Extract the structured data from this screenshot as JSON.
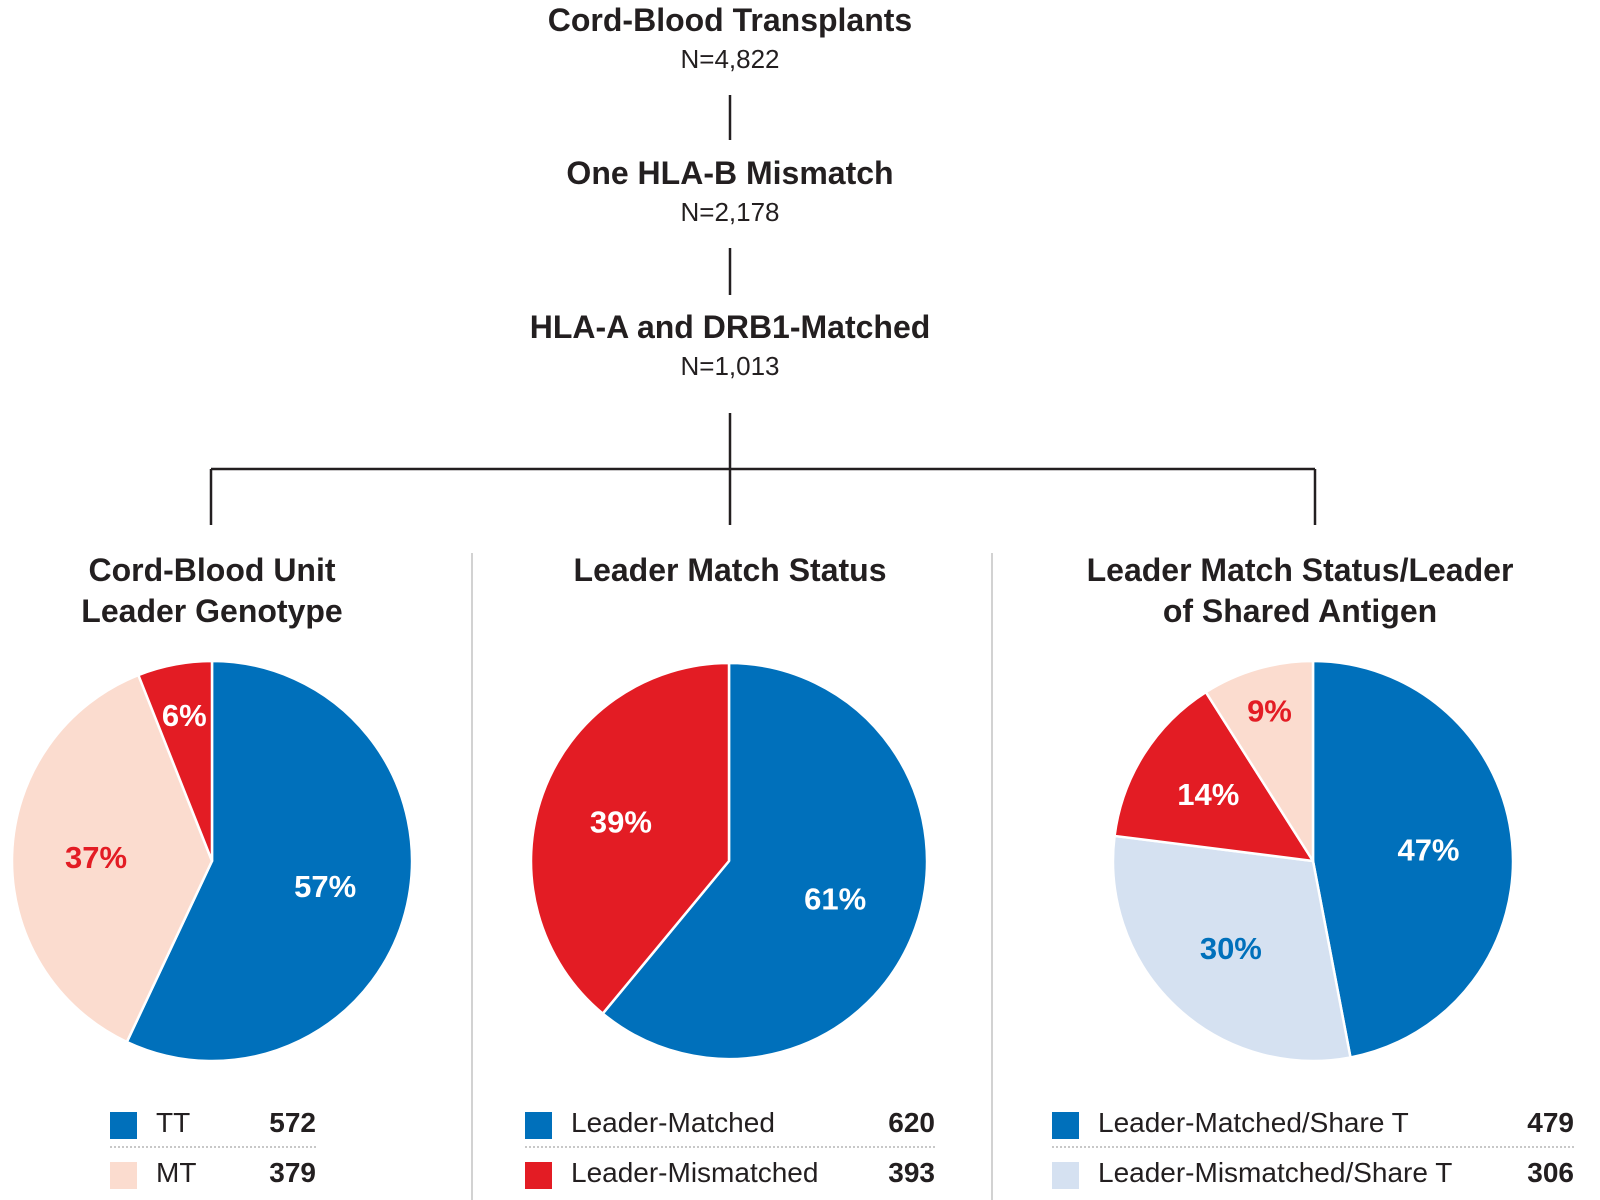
{
  "flow": [
    {
      "title": "Cord-Blood Transplants",
      "n": "N=4,822"
    },
    {
      "title": "One HLA-B Mismatch",
      "n": "N=2,178"
    },
    {
      "title": "HLA-A and DRB1-Matched",
      "n": "N=1,013"
    }
  ],
  "colors": {
    "blue": "#0070bb",
    "red": "#e31c24",
    "peach": "#fbdccf",
    "light_blue": "#d5e1f1",
    "white": "#ffffff"
  },
  "chart_data": [
    {
      "type": "pie",
      "title": [
        "Cord-Blood Unit",
        "Leader Genotype"
      ],
      "slices": [
        {
          "label": "57%",
          "value": 57,
          "color": "#0070bb",
          "label_color": "#ffffff"
        },
        {
          "label": "37%",
          "value": 37,
          "color": "#fbdccf",
          "label_color": "#e31c24"
        },
        {
          "label": "6%",
          "value": 6,
          "color": "#e31c24",
          "label_color": "#ffffff"
        }
      ],
      "legend": [
        {
          "label": "TT",
          "count": "572",
          "color": "#0070bb"
        },
        {
          "label": "MT",
          "count": "379",
          "color": "#fbdccf"
        }
      ]
    },
    {
      "type": "pie",
      "title": [
        "Leader Match Status"
      ],
      "slices": [
        {
          "label": "61%",
          "value": 61,
          "color": "#0070bb",
          "label_color": "#ffffff"
        },
        {
          "label": "39%",
          "value": 39,
          "color": "#e31c24",
          "label_color": "#ffffff"
        }
      ],
      "legend": [
        {
          "label": "Leader-Matched",
          "count": "620",
          "color": "#0070bb"
        },
        {
          "label": "Leader-Mismatched",
          "count": "393",
          "color": "#e31c24"
        }
      ]
    },
    {
      "type": "pie",
      "title": [
        "Leader Match Status/Leader",
        "of Shared Antigen"
      ],
      "slices": [
        {
          "label": "47%",
          "value": 47,
          "color": "#0070bb",
          "label_color": "#ffffff"
        },
        {
          "label": "30%",
          "value": 30,
          "color": "#d5e1f1",
          "label_color": "#0070bb"
        },
        {
          "label": "14%",
          "value": 14,
          "color": "#e31c24",
          "label_color": "#ffffff"
        },
        {
          "label": "9%",
          "value": 9,
          "color": "#fbdccf",
          "label_color": "#e31c24"
        }
      ],
      "legend": [
        {
          "label": "Leader-Matched/Share T",
          "count": "479",
          "color": "#0070bb"
        },
        {
          "label": "Leader-Mismatched/Share T",
          "count": "306",
          "color": "#d5e1f1"
        }
      ]
    }
  ]
}
